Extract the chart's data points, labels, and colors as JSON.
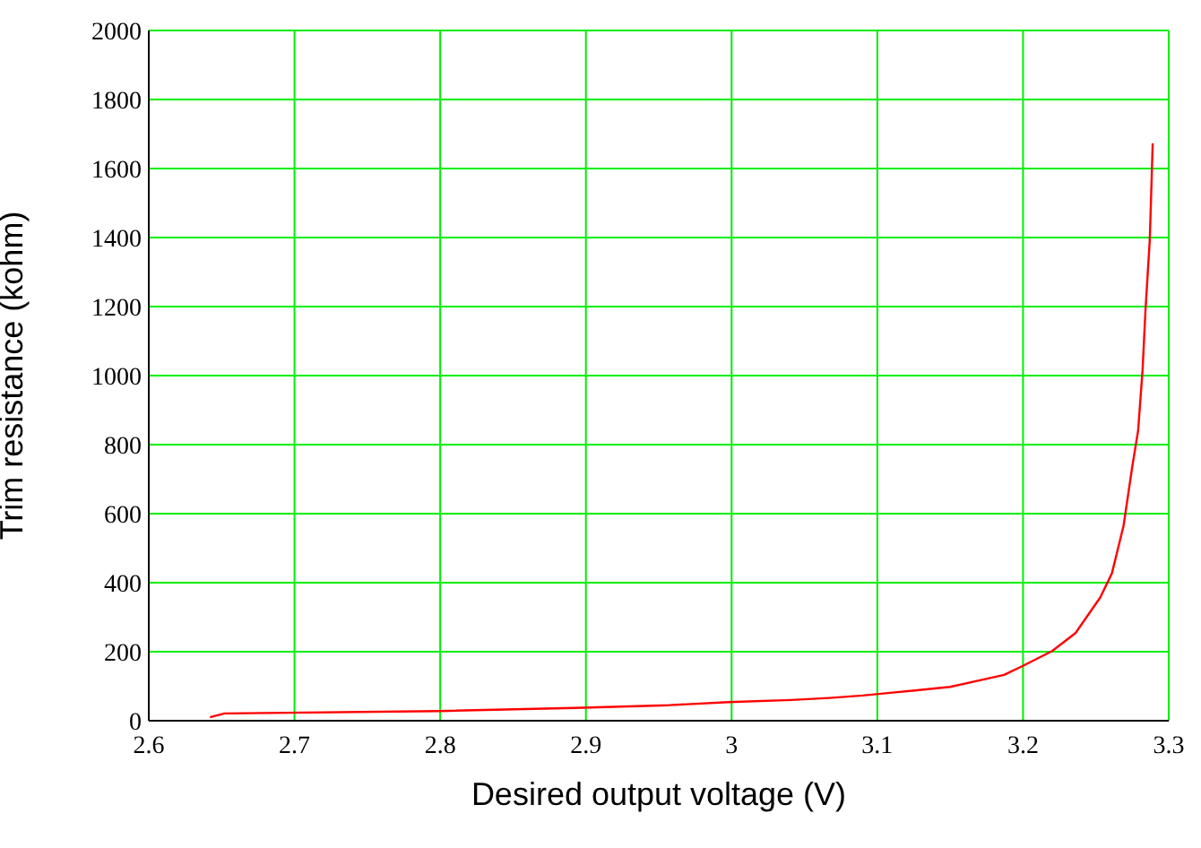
{
  "chart_data": {
    "type": "line",
    "xlabel": "Desired output voltage (V)",
    "ylabel": "Trim resistance (kohm)",
    "xlim": [
      2.6,
      3.3
    ],
    "xticks": [
      2.6,
      2.7,
      2.8,
      2.9,
      3,
      3.1,
      3.2,
      3.3
    ],
    "ylim": [
      0,
      2000
    ],
    "yticks": [
      0,
      200,
      400,
      600,
      800,
      1000,
      1200,
      1400,
      1600,
      1800,
      2000
    ],
    "grid": true,
    "legend": false,
    "marker": "none",
    "line_style": "solid",
    "series": [
      {
        "color": "#ff0000",
        "x": [
          2.642,
          2.652,
          2.799,
          2.892,
          2.957,
          2.998,
          3.041,
          3.067,
          3.09,
          3.112,
          3.15,
          3.187,
          3.2,
          3.22,
          3.236,
          3.253,
          3.261,
          3.269,
          3.275,
          3.279,
          3.282,
          3.284,
          3.287,
          3.289
        ],
        "values": [
          10,
          21,
          28,
          37,
          45,
          54,
          60,
          66,
          73,
          82,
          98,
          133,
          159,
          202,
          254,
          357,
          427,
          565,
          737,
          841,
          1014,
          1186,
          1394,
          1673
        ]
      }
    ]
  }
}
